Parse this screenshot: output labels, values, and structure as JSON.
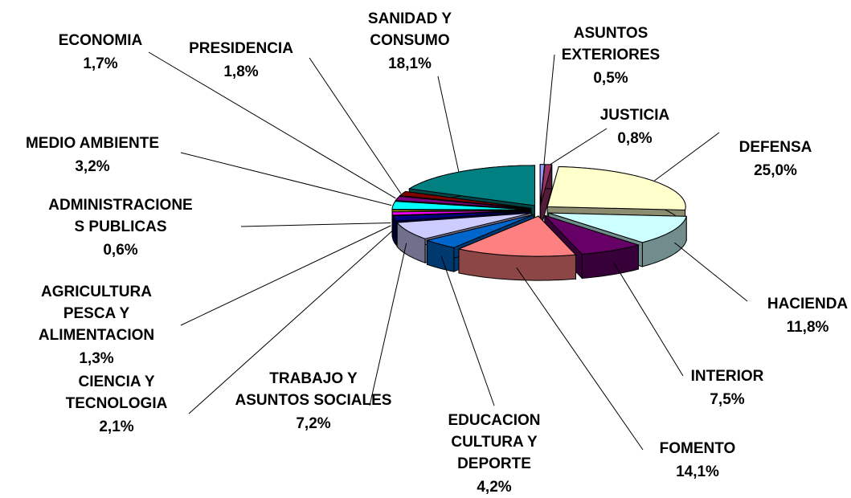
{
  "chart_data": {
    "type": "pie",
    "three_d": true,
    "exploded": true,
    "categories": [
      "ASUNTOS EXTERIORES",
      "JUSTICIA",
      "DEFENSA",
      "HACIENDA",
      "INTERIOR",
      "FOMENTO",
      "EDUCACION CULTURA Y DEPORTE",
      "TRABAJO Y ASUNTOS SOCIALES",
      "CIENCIA Y TECNOLOGIA",
      "AGRICULTURA PESCA Y ALIMENTACION",
      "ADMINISTRACIONES PUBLICAS",
      "MEDIO AMBIENTE",
      "ECONOMIA",
      "PRESIDENCIA",
      "SANIDAD Y CONSUMO"
    ],
    "values": [
      0.5,
      0.8,
      25.0,
      11.8,
      7.5,
      14.1,
      4.2,
      7.2,
      2.1,
      1.3,
      0.6,
      3.2,
      1.7,
      1.8,
      18.1
    ],
    "value_labels": [
      "0,5%",
      "0,8%",
      "25,0%",
      "11,8%",
      "7,5%",
      "14,1%",
      "4,2%",
      "7,2%",
      "2,1%",
      "1,3%",
      "0,6%",
      "3,2%",
      "1,7%",
      "1,8%",
      "18,1%"
    ],
    "colors": [
      "#9999ff",
      "#993366",
      "#ffffcc",
      "#ccffff",
      "#660066",
      "#ff8080",
      "#0066cc",
      "#ccccff",
      "#000080",
      "#ff00ff",
      "#ffff00",
      "#00ffff",
      "#800080",
      "#800000",
      "#008080"
    ]
  }
}
